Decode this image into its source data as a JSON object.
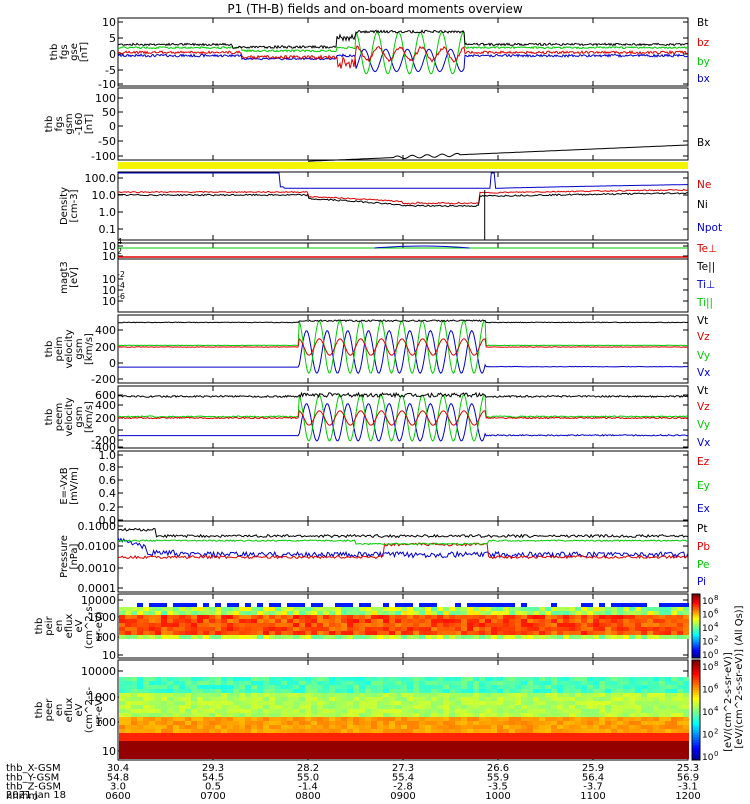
{
  "title": "P1 (TH-B) fields and on-board moments overview",
  "chart_data": [
    {
      "type": "line",
      "panel": "fgs-gse",
      "ylabel": [
        "thb",
        "fgs",
        "gse",
        "[nT]"
      ],
      "yticks": [
        "10",
        "5",
        "0",
        "-5",
        "-10"
      ],
      "ylim": [
        -10,
        10
      ],
      "series": [
        {
          "name": "Bt",
          "color": "#000000",
          "x": [
            "0600",
            "0700",
            "0800",
            "0830",
            "0845",
            "0900",
            "0930",
            "1000",
            "1100",
            "1200"
          ],
          "y": [
            3,
            2.5,
            2,
            4,
            6,
            7,
            7,
            3,
            3,
            3
          ]
        },
        {
          "name": "bz",
          "color": "#dd0000",
          "x": [
            "0600",
            "0700",
            "0800",
            "0830",
            "0900",
            "0930",
            "1000",
            "1100",
            "1200"
          ],
          "y": [
            0,
            -1,
            -1,
            -3,
            2,
            1,
            1,
            1,
            1
          ]
        },
        {
          "name": "by",
          "color": "#00cc00",
          "x": [
            "0600",
            "0700",
            "0800",
            "0830",
            "0900",
            "0930",
            "1000",
            "1100",
            "1200"
          ],
          "y": [
            2,
            1.5,
            1,
            2,
            0,
            1,
            2,
            2,
            2
          ]
        },
        {
          "name": "bx",
          "color": "#0000cc",
          "x": [
            "0600",
            "0700",
            "0800",
            "0830",
            "0900",
            "0930",
            "1000",
            "1100",
            "1200"
          ],
          "y": [
            0,
            -1,
            -1,
            -2,
            -2,
            -2,
            -1,
            -1,
            -2
          ]
        }
      ]
    },
    {
      "type": "line",
      "panel": "fgs-gsm",
      "ylabel": [
        "thb",
        "fgs",
        "gsm",
        "-160",
        "[nT]"
      ],
      "yticks": [
        "100",
        "50",
        "0",
        "-50",
        "-100"
      ],
      "ylim": [
        -150,
        120
      ],
      "series": [
        {
          "name": "Bx",
          "color": "#000000",
          "x": [
            "0800",
            "0830",
            "0900",
            "0930",
            "1000",
            "1100",
            "1200"
          ],
          "y": [
            -118,
            -112,
            -100,
            -90,
            -80,
            -72,
            -62
          ]
        }
      ]
    },
    {
      "type": "line",
      "panel": "density",
      "ylabel": [
        "Density",
        "[cm-3]"
      ],
      "yticks": [
        "100.0",
        "10.0",
        "1.0",
        "0.1"
      ],
      "scale": "log",
      "series": [
        {
          "name": "Ne",
          "color": "#dd0000",
          "x": [
            "0600",
            "0700",
            "0800",
            "0900",
            "0930",
            "1000",
            "1100",
            "1200"
          ],
          "y": [
            20,
            15,
            10,
            4,
            3,
            10,
            12,
            15
          ]
        },
        {
          "name": "Ni",
          "color": "#000000",
          "x": [
            "0600",
            "0700",
            "0800",
            "0900",
            "0930",
            "1000",
            "1100",
            "1200"
          ],
          "y": [
            10,
            10,
            8,
            3,
            2,
            8,
            10,
            12
          ]
        },
        {
          "name": "Npot",
          "color": "#0000cc",
          "x": [
            "0600",
            "0750",
            "0800",
            "1000",
            "1100",
            "1200"
          ],
          "y": [
            200,
            200,
            25,
            25,
            30,
            40
          ]
        }
      ]
    },
    {
      "type": "line",
      "panel": "magt3",
      "ylabel": [
        "magt3",
        "[eV]"
      ],
      "yticks": [
        "10",
        "10",
        "10",
        "10",
        "10"
      ],
      "ytick_exps": [
        "4",
        "2",
        "-2",
        "-4",
        "-6"
      ],
      "scale": "log",
      "series": [
        {
          "name": "Te⊥"
        },
        {
          "name": "Te||"
        },
        {
          "name": "Ti⊥"
        },
        {
          "name": "Ti||"
        }
      ]
    },
    {
      "type": "line",
      "panel": "peim-velocity",
      "ylabel": [
        "thb",
        "peim",
        "velocity",
        "gsm",
        "[km/s]"
      ],
      "yticks": [
        "400",
        "200",
        "0",
        "-200",
        "-400"
      ],
      "ylim": [
        -420,
        420
      ],
      "series": [
        {
          "name": "Vt",
          "color": "#000000"
        },
        {
          "name": "Vz",
          "color": "#dd0000"
        },
        {
          "name": "Vy",
          "color": "#00cc00"
        },
        {
          "name": "Vx",
          "color": "#0000cc"
        }
      ]
    },
    {
      "type": "line",
      "panel": "peem-velocity",
      "ylabel": [
        "thb",
        "peem",
        "velocity",
        "gsm",
        "[km/s]"
      ],
      "yticks": [
        "600",
        "400",
        "200",
        "0",
        "-200",
        "-400",
        "-600"
      ],
      "ylim": [
        -620,
        620
      ],
      "series": [
        {
          "name": "Vt",
          "color": "#000000"
        },
        {
          "name": "Vz",
          "color": "#dd0000"
        },
        {
          "name": "Vy",
          "color": "#00cc00"
        },
        {
          "name": "Vx",
          "color": "#0000cc"
        }
      ]
    },
    {
      "type": "line",
      "panel": "efield",
      "ylabel": [
        "E=-VxB",
        "[mV/m]"
      ],
      "yticks": [
        "1.0",
        "0.8",
        "0.6",
        "0.4",
        "0.2",
        "0.0"
      ],
      "ylim": [
        0,
        1
      ],
      "series": [
        {
          "name": "Ez",
          "color": "#dd0000"
        },
        {
          "name": "Ey",
          "color": "#00cc00"
        },
        {
          "name": "Ex",
          "color": "#0000cc"
        }
      ]
    },
    {
      "type": "line",
      "panel": "pressure",
      "ylabel": [
        "Pressure",
        "[nPa]"
      ],
      "yticks": [
        "0.1000",
        "0.0100",
        "0.0010",
        "0.0001"
      ],
      "scale": "log",
      "series": [
        {
          "name": "Pt",
          "color": "#000000"
        },
        {
          "name": "Pb",
          "color": "#dd0000"
        },
        {
          "name": "Pe",
          "color": "#00cc00"
        },
        {
          "name": "Pi",
          "color": "#0000cc"
        }
      ]
    },
    {
      "type": "heatmap",
      "panel": "peir-en-eflux",
      "ylabel": [
        "thb",
        "peir",
        "en",
        "eflux",
        "eV",
        "(cm^2-s-",
        "sr-eV)"
      ],
      "yticks": [
        "10000",
        "1000",
        "100",
        "10"
      ],
      "scale": "log"
    },
    {
      "type": "heatmap",
      "panel": "peer-en-eflux",
      "ylabel": [
        "thb",
        "peer",
        "en",
        "eflux",
        "eV",
        "(cm^2-s-",
        "sr-eV)"
      ],
      "yticks": [
        "10000",
        "1000",
        "100",
        "10"
      ],
      "scale": "log"
    }
  ],
  "colorbar": {
    "label": "[eV/(cm^2-s-sr-eV)] (All Qs)]",
    "label2": "[eV/(cm^2-s-sr-eV)]",
    "ticks_upper": [
      "8",
      "6",
      "4",
      "2",
      "0"
    ],
    "ticks_lower": [
      "8",
      "6",
      "4",
      "2",
      "0"
    ],
    "base": "10"
  },
  "xaxis": {
    "rows": [
      {
        "label": "thb_X-GSM",
        "values": [
          "30.4",
          "29.3",
          "28.2",
          "27.3",
          "26.6",
          "25.9",
          "25.3"
        ]
      },
      {
        "label": "thb_Y-GSM",
        "values": [
          "54.8",
          "54.5",
          "55.0",
          "55.4",
          "55.9",
          "56.4",
          "56.9"
        ]
      },
      {
        "label": "thb_Z-GSM",
        "values": [
          "3.0",
          "0.5",
          "-1.4",
          "-2.8",
          "-3.5",
          "-3.7",
          "-3.1"
        ]
      },
      {
        "label": "hhmm",
        "values": [
          "0600",
          "0700",
          "0800",
          "0900",
          "1000",
          "1100",
          "1200"
        ]
      }
    ],
    "date": "2021 Jan 18"
  }
}
